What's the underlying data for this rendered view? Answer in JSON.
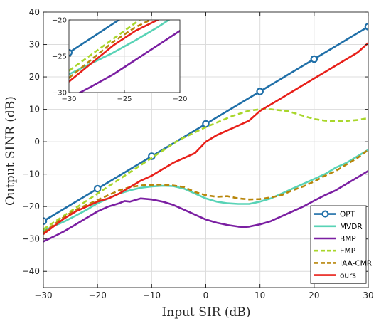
{
  "chart_data": {
    "type": "line",
    "xlabel": "Input SIR (dB)",
    "ylabel": "Output SINR (dB)",
    "xlim": [
      -30,
      30
    ],
    "ylim": [
      -45,
      40
    ],
    "xticks": [
      "−30",
      "−20",
      "−10",
      "0",
      "10",
      "20",
      "30"
    ],
    "yticks": [
      "−40",
      "−30",
      "−20",
      "−10",
      "0",
      "10",
      "20",
      "30",
      "40"
    ],
    "grid": true,
    "legend_position": "bottom-right",
    "series": [
      {
        "name": "OPT",
        "color": "#1f6fa8",
        "dash": "solid",
        "marker": "circle",
        "x": [
          -30,
          -20,
          -10,
          0,
          10,
          20,
          30
        ],
        "y": [
          -24.5,
          -14.5,
          -4.5,
          5.5,
          15.5,
          25.5,
          35.5
        ]
      },
      {
        "name": "MVDR",
        "color": "#58d3b6",
        "dash": "solid",
        "x": [
          -30,
          -28,
          -26,
          -24,
          -22,
          -20,
          -18,
          -16,
          -14,
          -12,
          -10,
          -8,
          -6,
          -4,
          -2,
          0,
          2,
          4,
          6,
          8,
          10,
          12,
          14,
          16,
          18,
          20,
          22,
          24,
          26,
          28,
          30
        ],
        "y": [
          -27.5,
          -26,
          -24.5,
          -22.8,
          -21,
          -19,
          -17.5,
          -16,
          -15,
          -14.2,
          -13.8,
          -13.6,
          -13.7,
          -14.5,
          -16,
          -17.5,
          -18.5,
          -19,
          -19.2,
          -19.2,
          -18.5,
          -17.5,
          -16,
          -14.5,
          -13,
          -11.5,
          -10,
          -8,
          -6.5,
          -4.5,
          -2.5
        ]
      },
      {
        "name": "BMP",
        "color": "#7b1fa2",
        "dash": "solid",
        "x": [
          -30,
          -28,
          -26,
          -24,
          -22,
          -20,
          -18,
          -16,
          -15,
          -14,
          -12,
          -10,
          -8,
          -6,
          -4,
          -2,
          0,
          2,
          4,
          6,
          7,
          8,
          10,
          12,
          14,
          16,
          18,
          20,
          22,
          24,
          26,
          28,
          30
        ],
        "y": [
          -30.8,
          -29.2,
          -27.5,
          -25.5,
          -23.5,
          -21.5,
          -20,
          -19,
          -18.3,
          -18.5,
          -17.5,
          -17.8,
          -18.5,
          -19.5,
          -21,
          -22.5,
          -24,
          -25,
          -25.7,
          -26.2,
          -26.3,
          -26.2,
          -25.5,
          -24.5,
          -23,
          -21.5,
          -20,
          -18.2,
          -16.5,
          -15,
          -13,
          -11,
          -9
        ]
      },
      {
        "name": "EMP",
        "color": "#a8d62a",
        "dash": "dashed",
        "x": [
          -30,
          -25,
          -20,
          -15,
          -10,
          -5,
          0,
          5,
          8,
          10,
          12,
          15,
          18,
          20,
          22,
          25,
          28,
          30
        ],
        "y": [
          -27,
          -21.5,
          -16,
          -10.5,
          -5,
          0.5,
          4.5,
          8,
          9.6,
          10,
          10,
          9.5,
          8,
          7,
          6.5,
          6.3,
          6.7,
          7.3
        ]
      },
      {
        "name": "IAA-CMR",
        "color": "#b8860b",
        "dash": "dashed",
        "x": [
          -30,
          -28,
          -26,
          -24,
          -22,
          -20,
          -18,
          -16,
          -14,
          -12,
          -10,
          -8,
          -6,
          -4,
          -2,
          0,
          2,
          4,
          6,
          8,
          10,
          12,
          14,
          16,
          18,
          20,
          22,
          24,
          26,
          28,
          30
        ],
        "y": [
          -28,
          -25.5,
          -23,
          -21,
          -19.5,
          -18,
          -16.5,
          -15,
          -14,
          -13.5,
          -13.3,
          -13.2,
          -13.5,
          -14,
          -15.5,
          -16.5,
          -17,
          -16.8,
          -17.5,
          -17.8,
          -17.7,
          -17.2,
          -16.5,
          -15,
          -13.8,
          -12.3,
          -10.5,
          -9,
          -7,
          -5,
          -2.5
        ]
      },
      {
        "name": "ours",
        "color": "#e8201a",
        "dash": "solid",
        "x": [
          -30,
          -28,
          -26,
          -24,
          -22,
          -20,
          -18,
          -16,
          -14,
          -12,
          -10,
          -8,
          -6,
          -4,
          -2,
          0,
          2,
          4,
          6,
          8,
          10,
          12,
          14,
          16,
          18,
          20,
          22,
          24,
          26,
          28,
          30
        ],
        "y": [
          -28.5,
          -26,
          -23.5,
          -21.5,
          -20,
          -18.5,
          -17.5,
          -16,
          -14,
          -12,
          -10.5,
          -8.5,
          -6.5,
          -5,
          -3.5,
          0,
          2,
          3.5,
          5,
          6.5,
          9.5,
          11.5,
          13.5,
          15.5,
          17.5,
          19.5,
          21.5,
          23.5,
          25.5,
          27.5,
          30.5
        ]
      }
    ],
    "inset": {
      "xlim": [
        -30,
        -20
      ],
      "ylim": [
        -30,
        -20
      ],
      "xticks": [
        "−30",
        "−25",
        "−20"
      ],
      "yticks": [
        "−30",
        "−25",
        "−20"
      ],
      "grid": true
    }
  }
}
